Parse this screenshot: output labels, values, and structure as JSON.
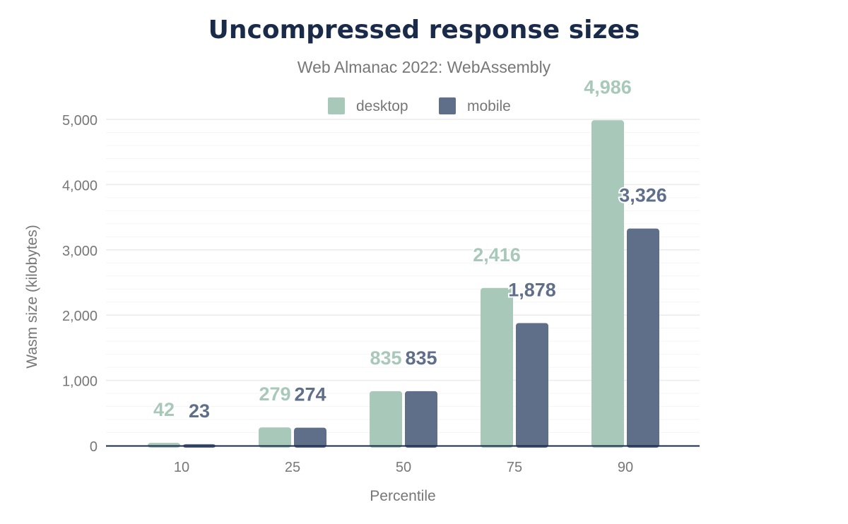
{
  "chart_data": {
    "type": "bar",
    "title": "Uncompressed response sizes",
    "subtitle": "Web Almanac 2022: WebAssembly",
    "xlabel": "Percentile",
    "ylabel": "Wasm size (kilobytes)",
    "categories": [
      "10",
      "25",
      "50",
      "75",
      "90"
    ],
    "ylim": [
      0,
      5000
    ],
    "yticks": [
      0,
      1000,
      2000,
      3000,
      4000,
      5000
    ],
    "ytick_labels": [
      "0",
      "1,000",
      "2,000",
      "3,000",
      "4,000",
      "5,000"
    ],
    "grid": true,
    "legend_position": "top-center",
    "series": [
      {
        "name": "desktop",
        "color": "#a8c9b9",
        "values": [
          42,
          279,
          835,
          2416,
          4986
        ],
        "labels": [
          "42",
          "279",
          "835",
          "2,416",
          "4,986"
        ]
      },
      {
        "name": "mobile",
        "color": "#5f6f8a",
        "values": [
          23,
          274,
          835,
          1878,
          3326
        ],
        "labels": [
          "23",
          "274",
          "835",
          "1,878",
          "3,326"
        ]
      }
    ]
  }
}
